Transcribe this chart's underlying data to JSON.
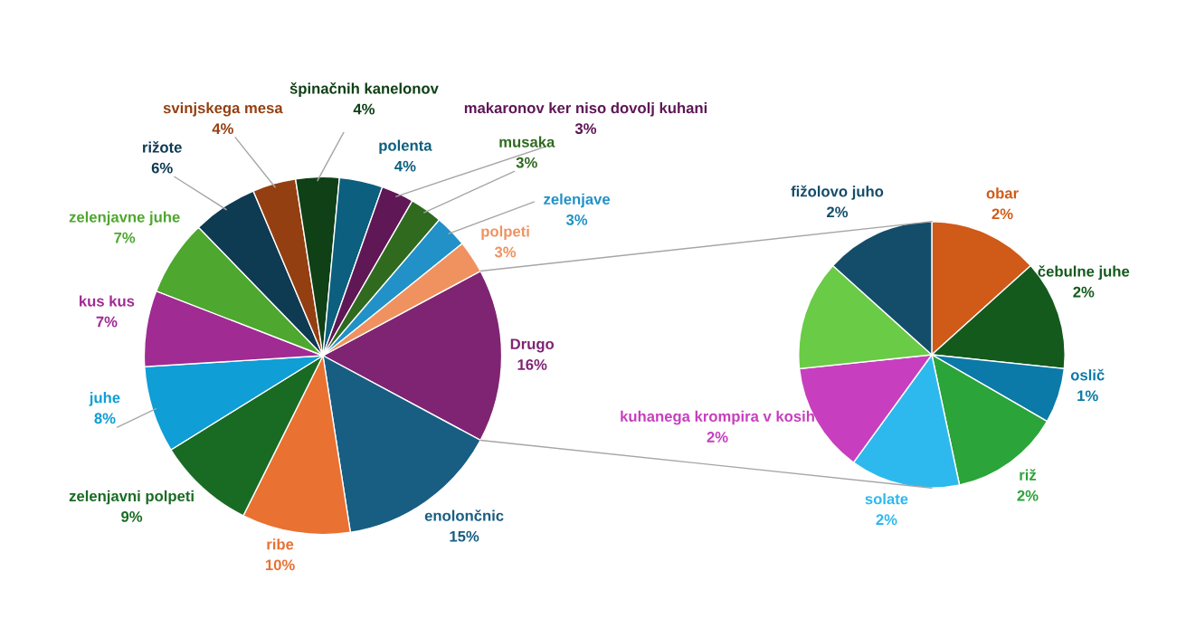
{
  "chart_data": [
    {
      "type": "pie",
      "categories": [
        "Drugo",
        "enolončnic",
        "ribe",
        "zelenjavni polpeti",
        "juhe",
        "kus kus",
        "zelenjavne juhe",
        "rižote",
        "svinjskega mesa",
        "špinačnih kanelonov",
        "polenta",
        "makaronov ker niso dovolj kuhani",
        "musaka",
        "zelenjave",
        "polpeti"
      ],
      "values": [
        16,
        15,
        10,
        9,
        8,
        7,
        7,
        6,
        4,
        4,
        4,
        3,
        3,
        3,
        3
      ],
      "value_labels": [
        "16%",
        "15%",
        "10%",
        "9%",
        "8%",
        "7%",
        "7%",
        "6%",
        "4%",
        "4%",
        "4%",
        "3%",
        "3%",
        "3%",
        "3%"
      ],
      "colors": [
        "#7f2473",
        "#175e82",
        "#e97132",
        "#196b24",
        "#0f9ed5",
        "#a02b93",
        "#4ea72e",
        "#0e3a52",
        "#943f12",
        "#0f4016",
        "#0c5f7e",
        "#5f1756",
        "#2f6a1f",
        "#2191c7",
        "#f09260"
      ]
    },
    {
      "type": "pie",
      "categories": [
        "obar",
        "čebulne juhe",
        "oslič",
        "riž",
        "solate",
        "kuhanega krompira v kosih",
        null,
        "fižolovo juho"
      ],
      "values": [
        2,
        2,
        1,
        2,
        2,
        2,
        2,
        2
      ],
      "value_labels": [
        "2%",
        "2%",
        "1%",
        "2%",
        "2%",
        "2%",
        null,
        "2%"
      ],
      "colors": [
        "#d05a17",
        "#145a1c",
        "#0b7aa8",
        "#2ba43a",
        "#2db9ee",
        "#c73fbe",
        "#6acb46",
        "#144d6a"
      ]
    }
  ]
}
